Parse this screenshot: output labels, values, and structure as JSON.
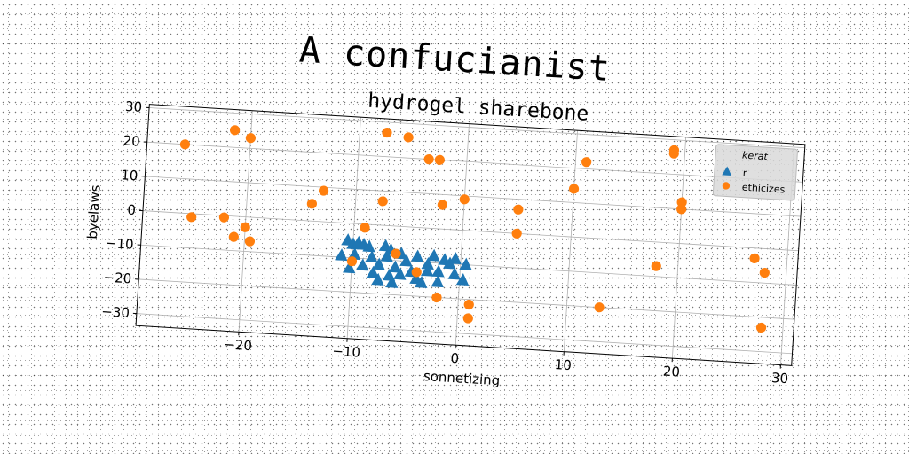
{
  "figure_title": "A confucianist",
  "chart_data": {
    "type": "scatter",
    "title": "hydrogel sharebone",
    "xlabel": "sonnetizing",
    "ylabel": "byelaws",
    "xlim": [
      -29.5,
      31
    ],
    "ylim": [
      -33.5,
      31
    ],
    "xticks": [
      -20,
      -10,
      0,
      10,
      20,
      30
    ],
    "yticks": [
      -30,
      -20,
      -10,
      0,
      10,
      20,
      30
    ],
    "grid": true,
    "rotation_deg": 3.5,
    "legend": {
      "title": "kerat",
      "position": "top-right"
    },
    "series": [
      {
        "name": "r",
        "marker": "triangle",
        "color": "#1f77b4",
        "x": [
          -10.5,
          -10.0,
          -9.5,
          -9.0,
          -8.5,
          -7.0,
          -6.5,
          -5.5,
          -4.0,
          -2.5,
          -1.5,
          -0.5,
          -11.0,
          -9.8,
          -8.2,
          -6.8,
          -5.0,
          -3.0,
          -1.0,
          0.5,
          -10.2,
          -9.0,
          -7.5,
          -6.0,
          -4.5,
          -3.0,
          -2.0,
          -0.5,
          0.3,
          -8.0,
          -6.5,
          -5.5,
          -4.0,
          -3.5,
          -2.0,
          -7.5,
          -6.2
        ],
        "y": [
          -5,
          -6,
          -5.5,
          -6,
          -6.5,
          -6,
          -7,
          -8,
          -8.5,
          -8,
          -9,
          -8.5,
          -9.5,
          -9,
          -9.5,
          -9,
          -10,
          -10.5,
          -10,
          -10,
          -13,
          -12,
          -11.5,
          -12,
          -13,
          -12.5,
          -12.5,
          -13,
          -14.5,
          -14,
          -14.5,
          -14,
          -15,
          -16,
          -15.5,
          -16,
          -16.5
        ]
      },
      {
        "name": "ethicizes",
        "marker": "circle",
        "color": "#ff7f0e",
        "x": [
          -26,
          -25,
          -21.5,
          -20,
          -22,
          -21,
          -20,
          -19.5,
          -14,
          -13,
          -10,
          -9,
          -7.5,
          -7.5,
          -6,
          -5.5,
          -4,
          -3.5,
          -2,
          -2.5,
          -2,
          0,
          1,
          1,
          5,
          5,
          10,
          11,
          13,
          18,
          19,
          19,
          20,
          20,
          27,
          28,
          28
        ],
        "y": [
          20,
          -1,
          25,
          23,
          -0.5,
          -6,
          -3,
          -7,
          5,
          9,
          -11,
          -1,
          27,
          7,
          -8,
          26,
          -13,
          20,
          -20,
          20,
          7,
          9,
          -21.5,
          -25.5,
          7,
          0,
          14,
          22,
          -20,
          -7,
          27,
          26,
          12,
          10,
          -3,
          -7,
          -23
        ]
      }
    ]
  }
}
